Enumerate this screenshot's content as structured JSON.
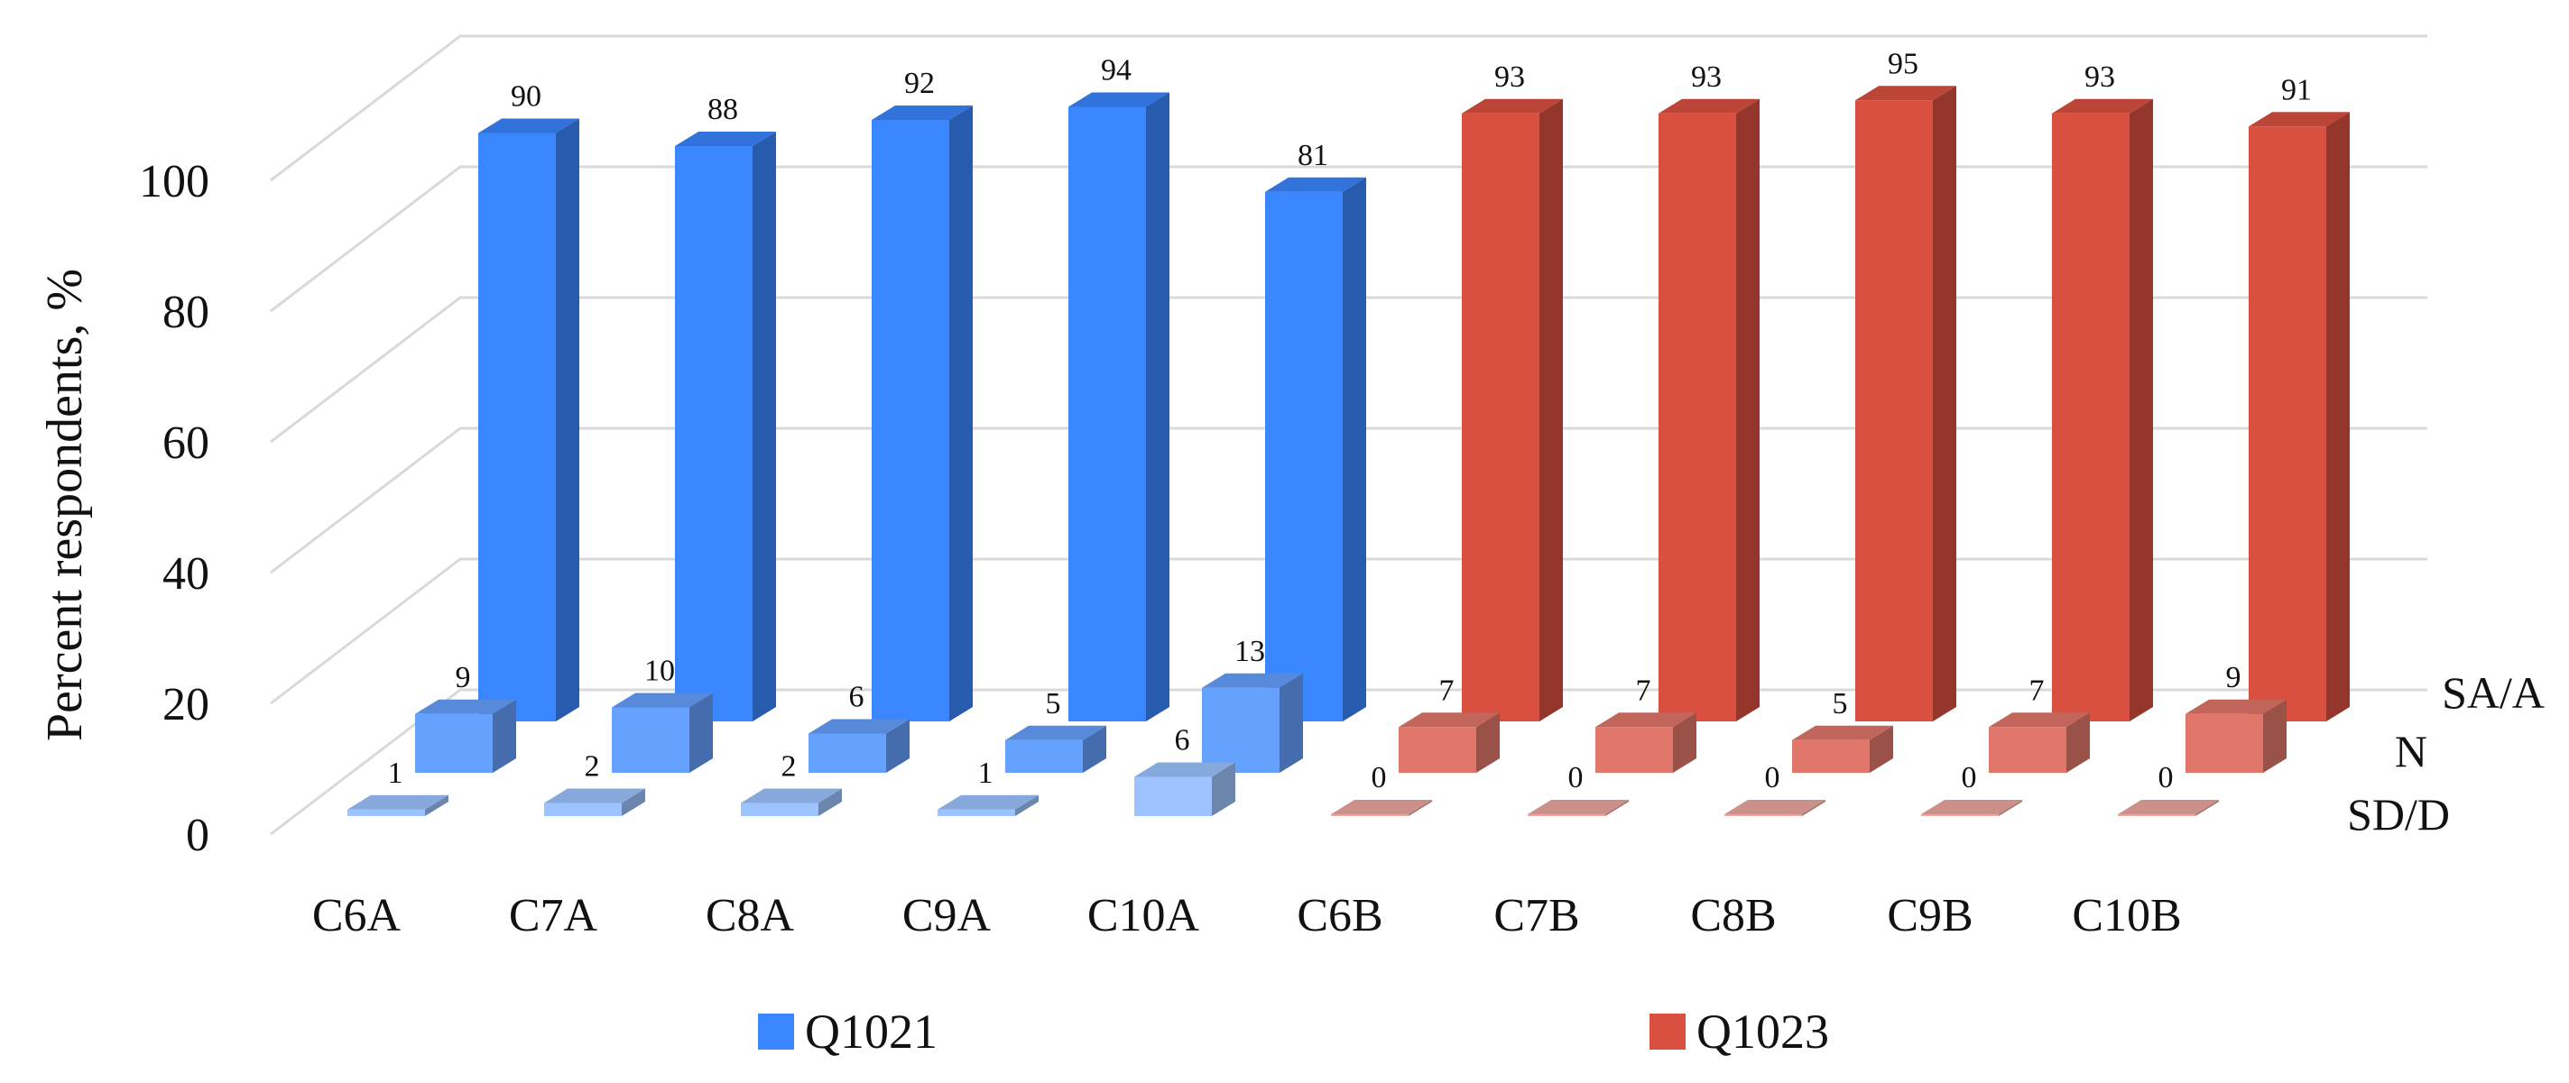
{
  "chart_data": {
    "type": "bar",
    "style": "3d-column",
    "ylabel": "Percent respondents, %",
    "yticks": [
      "0",
      "20",
      "40",
      "60",
      "80",
      "100"
    ],
    "ylim": [
      0,
      100
    ],
    "grid": true,
    "categories": [
      "C6A",
      "C7A",
      "C8A",
      "C9A",
      "C10A",
      "C6B",
      "C7B",
      "C8B",
      "C9B",
      "C10B"
    ],
    "depth_series": [
      "SD/D",
      "N",
      "SA/A"
    ],
    "values": {
      "SD/D": [
        1,
        2,
        2,
        1,
        6,
        0,
        0,
        0,
        0,
        0
      ],
      "N": [
        9,
        10,
        6,
        5,
        13,
        7,
        7,
        5,
        7,
        9
      ],
      "SA/A": [
        90,
        88,
        92,
        94,
        81,
        93,
        93,
        95,
        93,
        91
      ]
    },
    "groups": [
      {
        "name": "Q1021",
        "categories": [
          "C6A",
          "C7A",
          "C8A",
          "C9A",
          "C10A"
        ],
        "color": "#3a86ff"
      },
      {
        "name": "Q1023",
        "categories": [
          "C6B",
          "C7B",
          "C8B",
          "C9B",
          "C10B"
        ],
        "color": "#d95040"
      }
    ],
    "legend": {
      "position": "bottom",
      "entries": [
        "Q1021",
        "Q1023"
      ]
    }
  }
}
